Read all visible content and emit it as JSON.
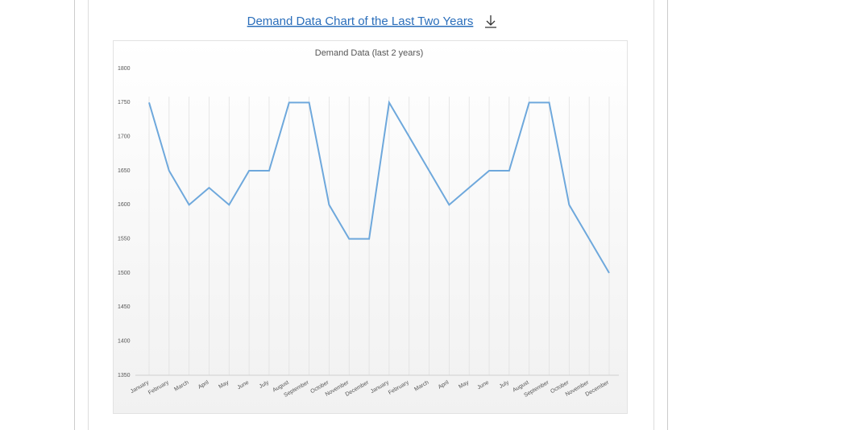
{
  "page": {
    "link": "Demand Data Chart of the Last Two Years"
  },
  "chart_data": {
    "type": "line",
    "title": "Demand Data (last 2 years)",
    "categories": [
      "January",
      "February",
      "March",
      "April",
      "May",
      "June",
      "July",
      "August",
      "September",
      "October",
      "November",
      "December",
      "January",
      "February",
      "March",
      "April",
      "May",
      "June",
      "July",
      "August",
      "September",
      "October",
      "November",
      "December"
    ],
    "series": [
      {
        "name": "Demand",
        "color": "#6ea8dc",
        "values": [
          1750,
          1650,
          1600,
          1625,
          1600,
          1650,
          1650,
          1750,
          1750,
          1600,
          1550,
          1550,
          1750,
          1700,
          1650,
          1600,
          1625,
          1650,
          1650,
          1750,
          1750,
          1600,
          1550,
          1500
        ]
      }
    ],
    "ylim": [
      1350,
      1800
    ],
    "yticks": [
      1350,
      1400,
      1450,
      1500,
      1550,
      1600,
      1650,
      1700,
      1750,
      1800
    ],
    "grid": true
  }
}
